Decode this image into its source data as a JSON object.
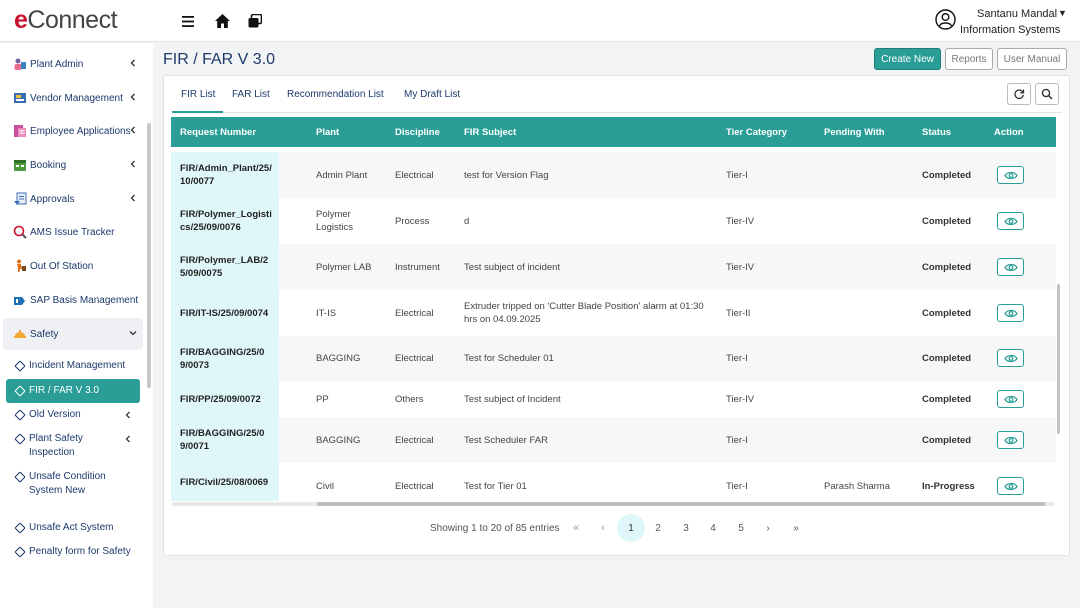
{
  "header": {
    "logo_e": "e",
    "logo_rest": "Connect",
    "user_name": "Santanu Mandal",
    "user_dept": "Information Systems"
  },
  "sidebar": {
    "items": [
      {
        "label": "Plant Admin",
        "icon": "plant-admin-icon"
      },
      {
        "label": "Vendor Management",
        "icon": "vendor-icon"
      },
      {
        "label": "Employee Applications",
        "icon": "employee-icon"
      },
      {
        "label": "Booking",
        "icon": "booking-icon"
      },
      {
        "label": "Approvals",
        "icon": "approvals-icon"
      },
      {
        "label": "AMS Issue Tracker",
        "icon": "tracker-icon"
      },
      {
        "label": "Out Of Station",
        "icon": "travel-icon"
      },
      {
        "label": "SAP Basis Management",
        "icon": "sap-icon"
      },
      {
        "label": "Safety",
        "icon": "safety-icon"
      }
    ],
    "sub_items": [
      {
        "label": "Incident Management"
      },
      {
        "label": "FIR / FAR V 3.0"
      },
      {
        "label": "Old Version"
      },
      {
        "label": "Plant Safety Inspection"
      },
      {
        "label": "Unsafe Condition System New"
      },
      {
        "label": "Unsafe Act System"
      },
      {
        "label": "Penalty form for Safety"
      }
    ]
  },
  "page": {
    "title": "FIR / FAR V 3.0",
    "buttons": {
      "create": "Create New",
      "reports": "Reports",
      "manual": "User Manual"
    },
    "tabs": [
      "FIR List",
      "FAR List",
      "Recommendation List",
      "My Draft List"
    ]
  },
  "table": {
    "columns": [
      "Request Number",
      "Plant",
      "Discipline",
      "FIR Subject",
      "Tier Category",
      "Pending With",
      "Status",
      "Action"
    ],
    "rows": [
      {
        "req": "FIR/Admin_Plant/25/10/0077",
        "plant": "Admin Plant",
        "discipline": "Electrical",
        "subject": "test for Version Flag",
        "tier": "Tier-I",
        "pending": "",
        "status": "Completed"
      },
      {
        "req": "FIR/Polymer_Logistics/25/09/0076",
        "plant": "Polymer Logistics",
        "discipline": "Process",
        "subject": "d",
        "tier": "Tier-IV",
        "pending": "",
        "status": "Completed"
      },
      {
        "req": "FIR/Polymer_LAB/25/09/0075",
        "plant": "Polymer LAB",
        "discipline": "Instrument",
        "subject": "Test subject of incident",
        "tier": "Tier-IV",
        "pending": "",
        "status": "Completed"
      },
      {
        "req": "FIR/IT-IS/25/09/0074",
        "plant": "IT-IS",
        "discipline": "Electrical",
        "subject": "Extruder tripped on 'Cutter Blade Position' alarm at 01:30 hrs on 04.09.2025",
        "tier": "Tier-II",
        "pending": "",
        "status": "Completed"
      },
      {
        "req": "FIR/BAGGING/25/09/0073",
        "plant": "BAGGING",
        "discipline": "Electrical",
        "subject": "Test for Scheduler 01",
        "tier": "Tier-I",
        "pending": "",
        "status": "Completed"
      },
      {
        "req": "FIR/PP/25/09/0072",
        "plant": "PP",
        "discipline": "Others",
        "subject": "Test subject of Incident",
        "tier": "Tier-IV",
        "pending": "",
        "status": "Completed"
      },
      {
        "req": "FIR/BAGGING/25/09/0071",
        "plant": "BAGGING",
        "discipline": "Electrical",
        "subject": "Test Scheduler FAR",
        "tier": "Tier-I",
        "pending": "",
        "status": "Completed"
      },
      {
        "req": "FIR/Civil/25/08/0069",
        "plant": "Civil",
        "discipline": "Electrical",
        "subject": "Test for Tier 01",
        "tier": "Tier-I",
        "pending": "Parash Sharma",
        "status": "In-Progress"
      }
    ]
  },
  "pagination": {
    "info": "Showing 1 to 20 of 85 entries",
    "first": "«",
    "prev": "‹",
    "pages": [
      "1",
      "2",
      "3",
      "4",
      "5"
    ],
    "next": "›",
    "last": "»"
  },
  "colors": {
    "accent": "#2a9d96",
    "nav_text": "#1d3a6b",
    "req_cell": "#dff7f8"
  }
}
